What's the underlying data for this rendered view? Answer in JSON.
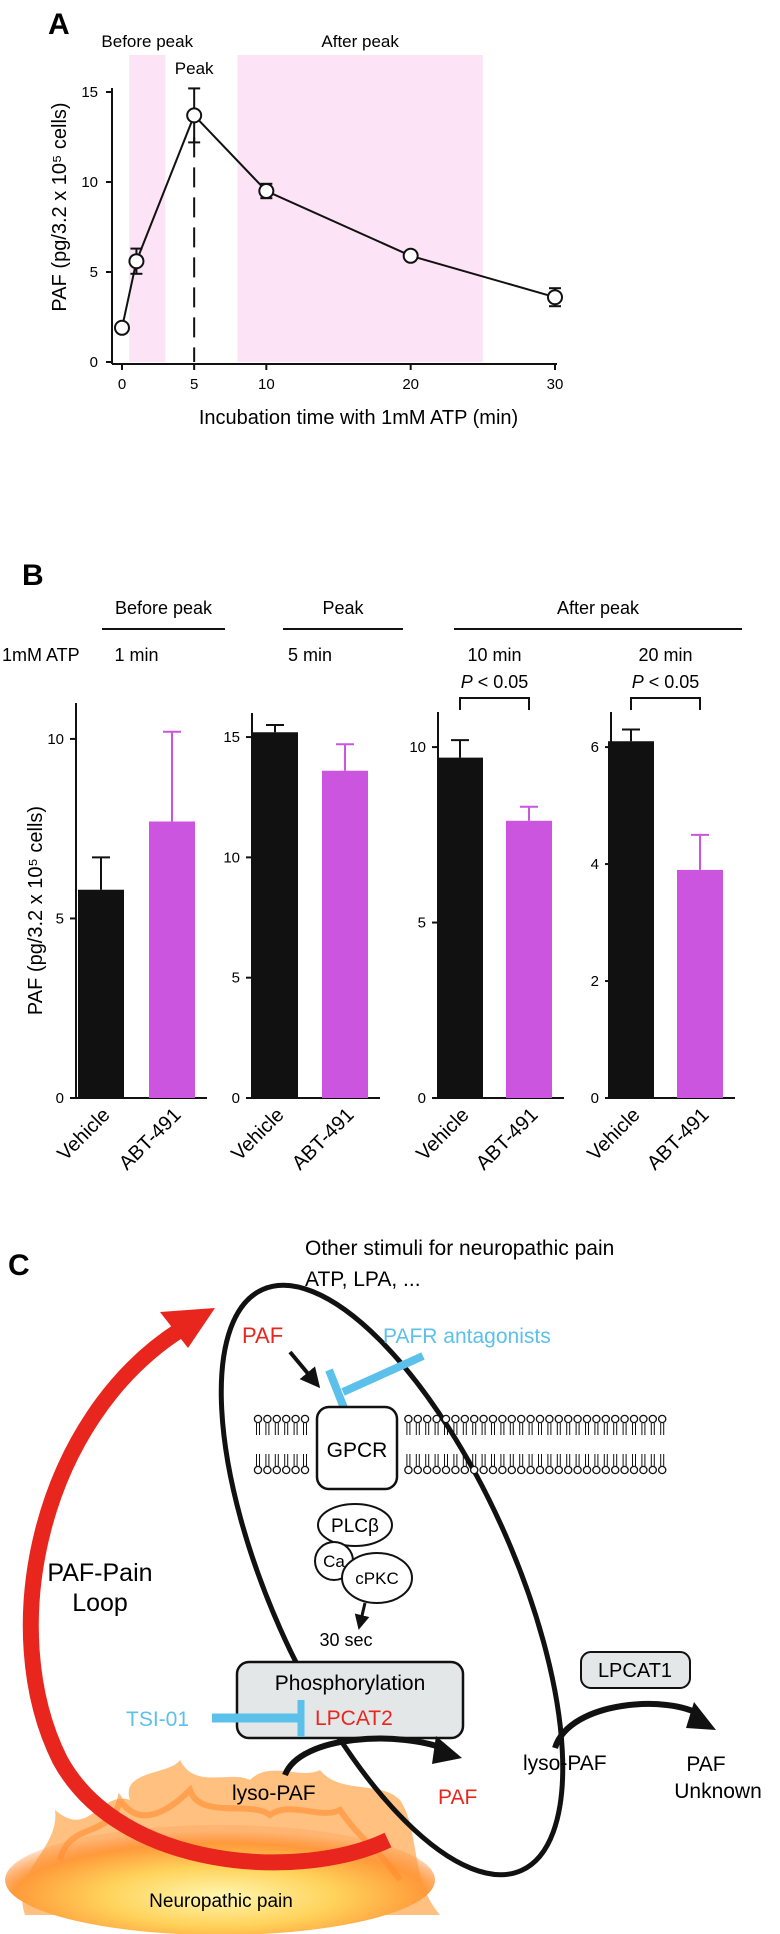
{
  "panels": {
    "a": "A",
    "b": "B",
    "c": "C"
  },
  "colors": {
    "vehicle": "#111111",
    "abt": "#cc55e0",
    "shade": "#fde3f6",
    "red": "#e8261d",
    "blue": "#5bc0ea"
  },
  "chart_data": [
    {
      "type": "line",
      "title": "",
      "xlabel": "Incubation time with 1mM ATP (min)",
      "ylabel": "PAF (pg/3.2 x 10⁵ cells)",
      "xlim": [
        0,
        30
      ],
      "ylim": [
        0,
        15
      ],
      "xticks": [
        "0",
        "5",
        "10",
        "20",
        "30"
      ],
      "yticks": [
        "0",
        "5",
        "10",
        "15"
      ],
      "x": [
        0,
        1,
        5,
        10,
        20,
        30
      ],
      "y": [
        1.9,
        5.6,
        13.7,
        9.5,
        5.9,
        3.6
      ],
      "err": [
        0,
        0.7,
        1.5,
        0.4,
        0,
        0.5
      ],
      "regions": [
        {
          "label": "Before peak",
          "from": 0.5,
          "to": 3
        },
        {
          "label": "After peak",
          "from": 8,
          "to": 25
        }
      ],
      "peak": {
        "label": "Peak",
        "x": 5
      }
    },
    {
      "type": "bar",
      "ylabel": "PAF (pg/3.2 x 10⁵ cells)",
      "row_label": "1mM ATP",
      "categories": [
        "Vehicle",
        "ABT-491"
      ],
      "groups": [
        {
          "phase": "Before peak",
          "time": "1 min",
          "ylim": [
            0,
            11
          ],
          "yticks": [
            "0",
            "5",
            "10"
          ],
          "values": [
            5.8,
            7.7
          ],
          "err": [
            0.9,
            2.5
          ],
          "p": ""
        },
        {
          "phase": "Peak",
          "time": "5 min",
          "ylim": [
            0,
            16
          ],
          "yticks": [
            "0",
            "5",
            "10",
            "15"
          ],
          "values": [
            15.2,
            13.6
          ],
          "err": [
            0.3,
            1.1
          ],
          "p": ""
        },
        {
          "phase": "After peak",
          "time": "10 min",
          "ylim": [
            0,
            11
          ],
          "yticks": [
            "0",
            "5",
            "10"
          ],
          "values": [
            9.7,
            7.9
          ],
          "err": [
            0.5,
            0.4
          ],
          "p": "P < 0.05"
        },
        {
          "phase": "After peak",
          "time": "20 min",
          "ylim": [
            0,
            6.6
          ],
          "yticks": [
            "0",
            "2",
            "4",
            "6"
          ],
          "values": [
            6.1,
            3.9
          ],
          "err": [
            0.2,
            0.6
          ],
          "p": "P < 0.05"
        }
      ],
      "spans": [
        {
          "label": "Before peak"
        },
        {
          "label": "Peak"
        },
        {
          "label": "After peak"
        }
      ]
    }
  ],
  "diagram": {
    "stimuli_line1": "Other stimuli for neuropathic pain",
    "stimuli_line2": "ATP, LPA, ...",
    "paf_top": "PAF",
    "antagonists": "PAFR antagonists",
    "gpcr": "GPCR",
    "plcb": "PLCβ",
    "ca": "Ca",
    "cpkc": "cPKC",
    "timing": "30 sec",
    "phosphorylation": "Phosphorylation",
    "lpcat2": "LPCAT2",
    "tsi": "TSI-01",
    "lyso_left": "lyso-PAF",
    "paf_bottom": "PAF",
    "loop_line1": "PAF-Pain",
    "loop_line2": "Loop",
    "lpcat1": "LPCAT1",
    "lyso_right": "lyso-PAF",
    "paf_right": "PAF",
    "unknown": "Unknown",
    "pain": "Neuropathic pain"
  }
}
